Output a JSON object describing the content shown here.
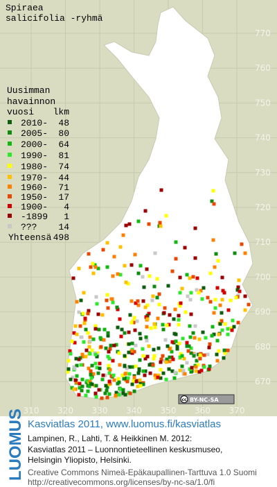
{
  "title": [
    "Spiraea",
    "salicifolia -ryhmä"
  ],
  "legend": {
    "heading": [
      "Uusimman",
      "havainnon",
      "vuosi"
    ],
    "count_heading": "lkm",
    "items": [
      {
        "label": "2010-",
        "count": 48,
        "color": "#0b5e0b"
      },
      {
        "label": "2005-",
        "count": 80,
        "color": "#0f8c0f"
      },
      {
        "label": "2000-",
        "count": 64,
        "color": "#12b812"
      },
      {
        "label": "1990-",
        "count": 81,
        "color": "#2ee82e"
      },
      {
        "label": "1980-",
        "count": 74,
        "color": "#ffff00"
      },
      {
        "label": "1970-",
        "count": 44,
        "color": "#ffc000"
      },
      {
        "label": "1960-",
        "count": 71,
        "color": "#ff7f00"
      },
      {
        "label": "1950-",
        "count": 17,
        "color": "#e84800"
      },
      {
        "label": "1900-",
        "count": 4,
        "color": "#d40000"
      },
      {
        "label": "-1899",
        "count": 1,
        "color": "#9c0000"
      },
      {
        "label": "???",
        "count": 14,
        "color": "#c8c8c8"
      }
    ],
    "total_label": "Yhteensä",
    "total": 498
  },
  "grid": {
    "y_labels": [
      770,
      760,
      750,
      740,
      730,
      720,
      710,
      700,
      690,
      680,
      670
    ],
    "x_labels": [
      310,
      320,
      330,
      340,
      350,
      360,
      370
    ]
  },
  "license_badge": [
    "cc",
    "BY-NC-SA"
  ],
  "footer": {
    "logo": "LUOMUS",
    "headline": "Kasviatlas 2011, www.luomus.fi/kasviatlas",
    "citation": [
      "Lampinen, R., Lahti, T. & Heikkinen M. 2012:",
      "Kasviatlas 2011 – Luonnontieteellinen keskusmuseo,",
      "Helsingin Yliopisto, Helsinki."
    ],
    "license": [
      "Creative Commons Nimeä-Epäkaupallinen-Tarttuva 1.0 Suomi",
      "http://creativecommons.org/licenses/by-nc-sa/1.0/fi"
    ]
  }
}
